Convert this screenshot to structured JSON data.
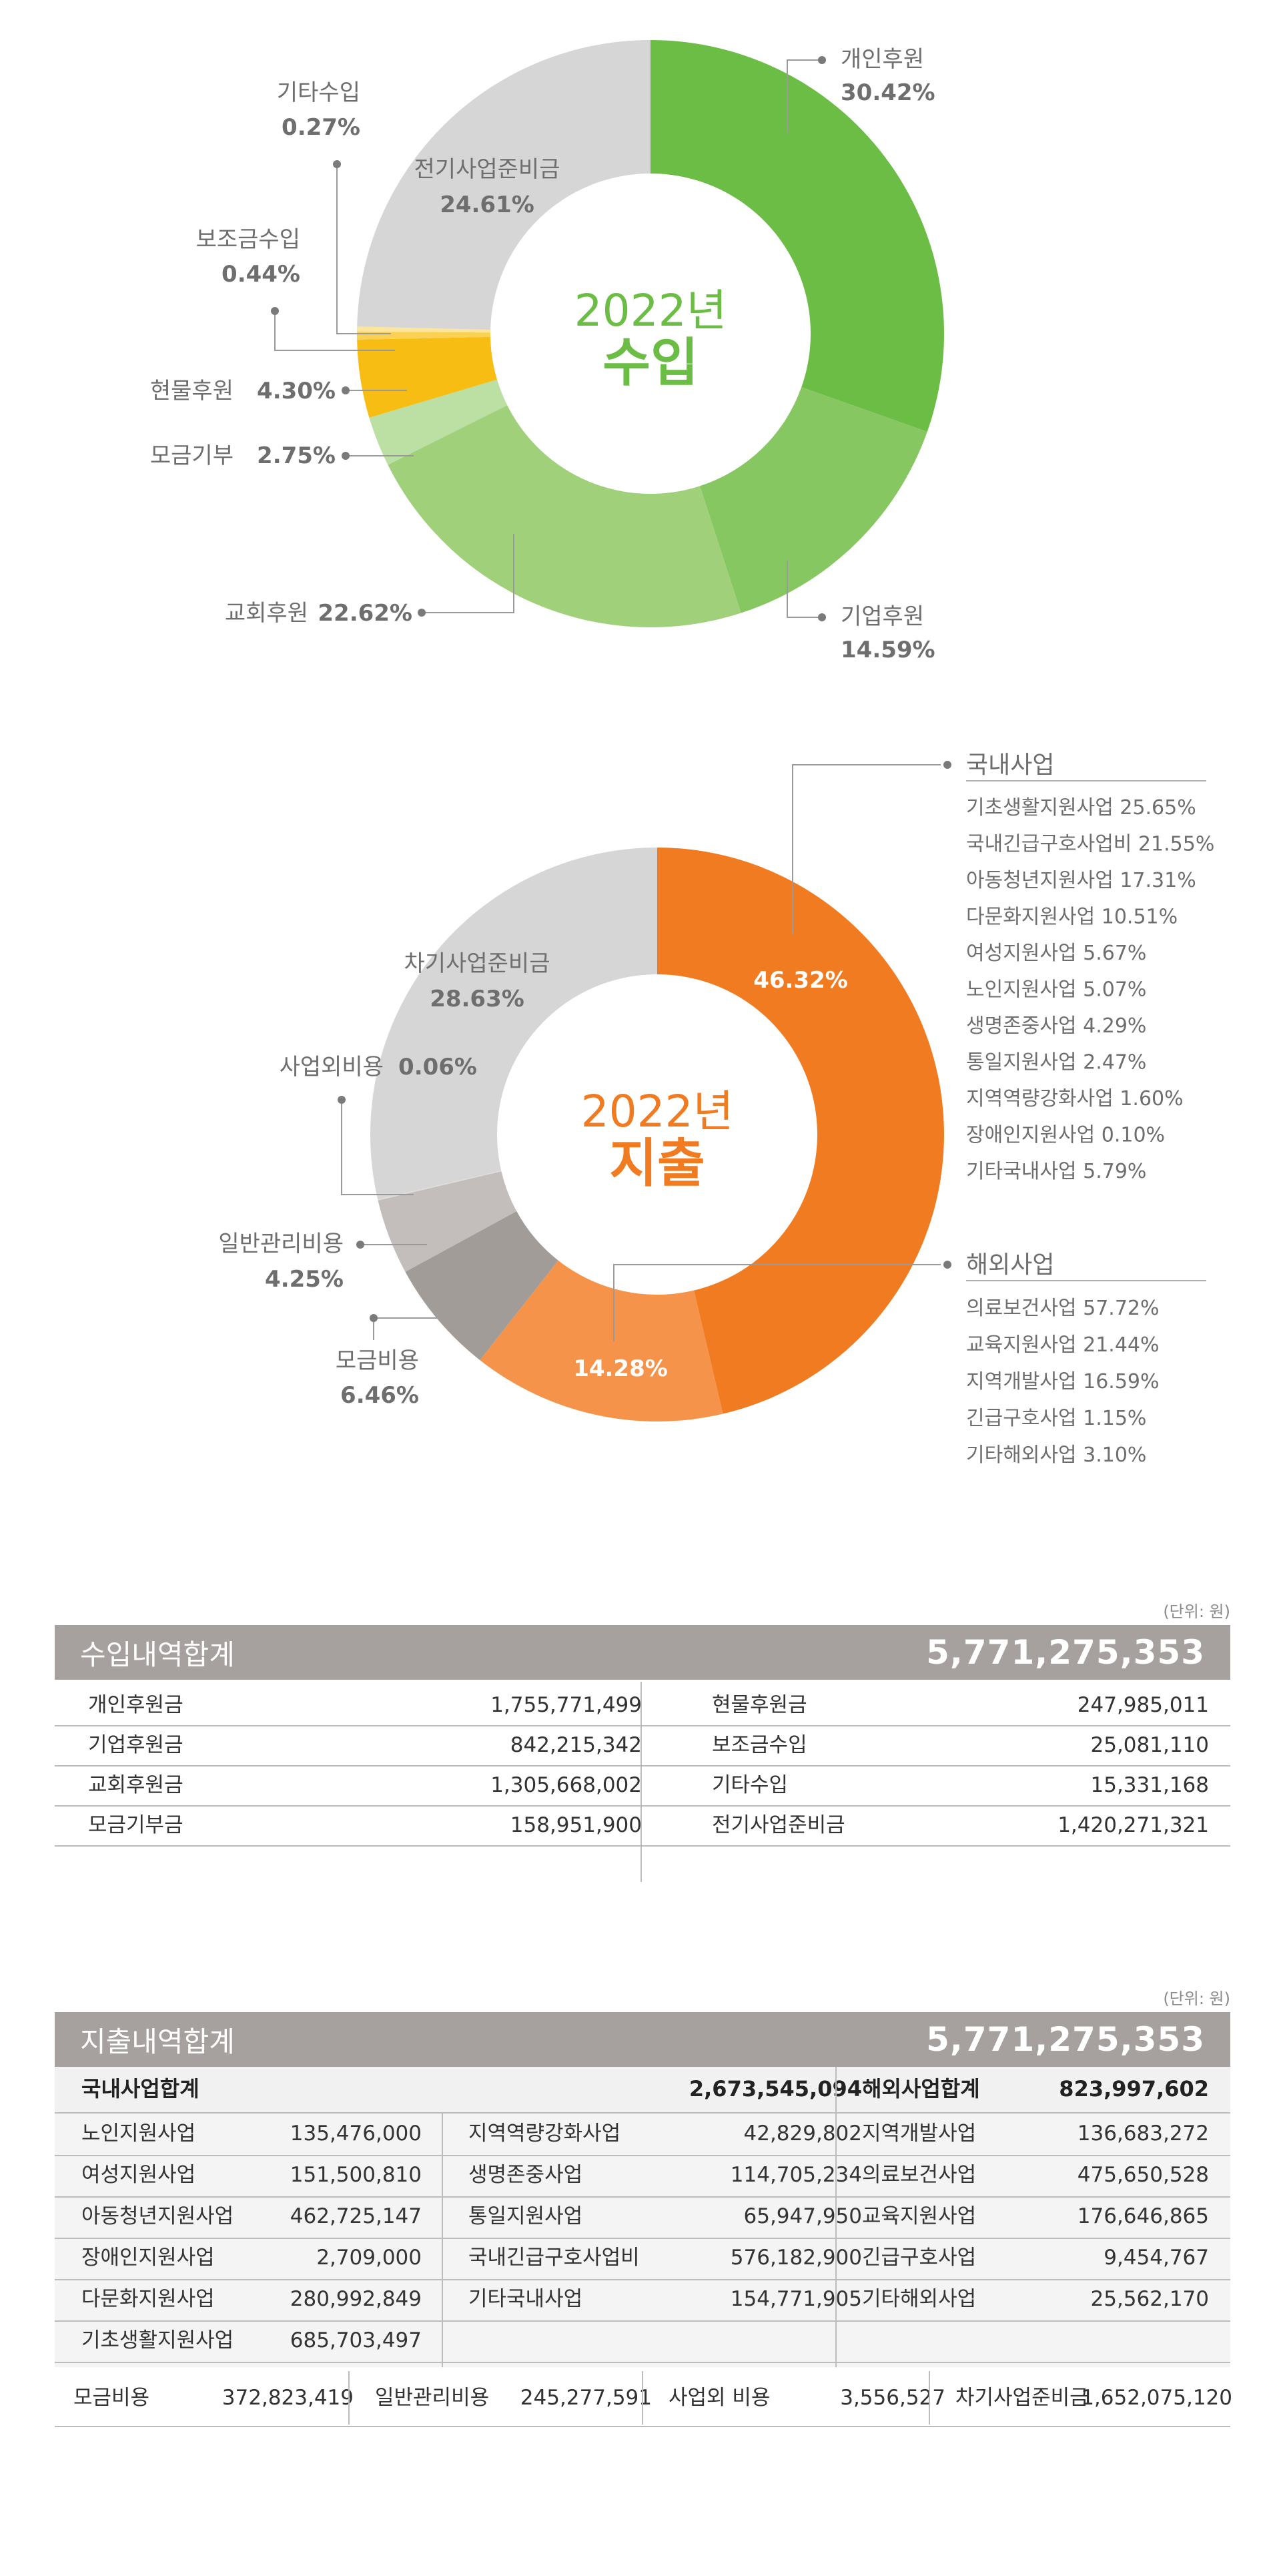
{
  "chart_data": [
    {
      "type": "pie",
      "center_title": {
        "year": "2022년",
        "label": "수입"
      },
      "slices": [
        {
          "name": "개인후원",
          "value": 30.42,
          "color": "#6cbd45"
        },
        {
          "name": "기업후원",
          "value": 14.59,
          "color": "#86c762"
        },
        {
          "name": "교회후원",
          "value": 22.62,
          "color": "#a0d07a"
        },
        {
          "name": "모금기부",
          "value": 2.75,
          "color": "#bcdfa4"
        },
        {
          "name": "현물후원",
          "value": 4.3,
          "color": "#f8bd12"
        },
        {
          "name": "보조금수입",
          "value": 0.44,
          "color": "#fbd153"
        },
        {
          "name": "기타수입",
          "value": 0.27,
          "color": "#fde59b"
        },
        {
          "name": "전기사업준비금",
          "value": 24.61,
          "color": "#d6d6d6"
        }
      ],
      "labels": [
        {
          "name": "개인후원",
          "value": "30.42%"
        },
        {
          "name": "기업후원",
          "value": "14.59%"
        },
        {
          "name": "교회후원",
          "value": "22.62%"
        },
        {
          "name": "모금기부",
          "value": "2.75%"
        },
        {
          "name": "현물후원",
          "value": "4.30%"
        },
        {
          "name": "보조금수입",
          "value": "0.44%"
        },
        {
          "name": "기타수입",
          "value": "0.27%"
        },
        {
          "name": "전기사업준비금",
          "value": "24.61%"
        }
      ]
    },
    {
      "type": "pie",
      "center_title": {
        "year": "2022년",
        "label": "지출"
      },
      "slices": [
        {
          "name": "국내사업",
          "value": 46.32,
          "color": "#f07b20"
        },
        {
          "name": "해외사업",
          "value": 14.28,
          "color": "#f5934a"
        },
        {
          "name": "모금비용",
          "value": 6.46,
          "color": "#a29c98"
        },
        {
          "name": "일반관리비용",
          "value": 4.25,
          "color": "#c3bebb"
        },
        {
          "name": "사업외비용",
          "value": 0.06,
          "color": "#e0dcda"
        },
        {
          "name": "차기사업준비금",
          "value": 28.63,
          "color": "#d6d6d6"
        }
      ],
      "labels": [
        {
          "name": "국내사업",
          "value": "46.32%"
        },
        {
          "name": "해외사업",
          "value": "14.28%"
        },
        {
          "name": "모금비용",
          "value": "6.46%"
        },
        {
          "name": "일반관리비용",
          "value": "4.25%"
        },
        {
          "name": "사업외비용",
          "value": "0.06%"
        },
        {
          "name": "차기사업준비금",
          "value": "28.63%"
        }
      ],
      "breakdowns": {
        "국내사업": [
          "기초생활지원사업 25.65%",
          "국내긴급구호사업비 21.55%",
          "아동청년지원사업 17.31%",
          "다문화지원사업 10.51%",
          "여성지원사업 5.67%",
          "노인지원사업 5.07%",
          "생명존중사업 4.29%",
          "통일지원사업 2.47%",
          "지역역량강화사업 1.60%",
          "장애인지원사업 0.10%",
          "기타국내사업 5.79%"
        ],
        "해외사업": [
          "의료보건사업 57.72%",
          "교육지원사업 21.44%",
          "지역개발사업 16.59%",
          "긴급구호사업 1.15%",
          "기타해외사업 3.10%"
        ]
      }
    }
  ],
  "income_table": {
    "unit": "(단위: 원)",
    "title": "수입내역합계",
    "total": "5,771,275,353",
    "rows": [
      [
        "개인후원금",
        "1,755,771,499",
        "현물후원금",
        "247,985,011"
      ],
      [
        "기업후원금",
        "842,215,342",
        "보조금수입",
        "25,081,110"
      ],
      [
        "교회후원금",
        "1,305,668,002",
        "기타수입",
        "15,331,168"
      ],
      [
        "모금기부금",
        "158,951,900",
        "전기사업준비금",
        "1,420,271,321"
      ]
    ]
  },
  "expense_table": {
    "unit": "(단위: 원)",
    "title": "지출내역합계",
    "total": "5,771,275,353",
    "domestic_title": "국내사업합계",
    "domestic_total": "2,673,545,094",
    "overseas_title": "해외사업합계",
    "overseas_total": "823,997,602",
    "rows": [
      [
        "노인지원사업",
        "135,476,000",
        "지역역량강화사업",
        "42,829,802",
        "지역개발사업",
        "136,683,272"
      ],
      [
        "여성지원사업",
        "151,500,810",
        "생명존중사업",
        "114,705,234",
        "의료보건사업",
        "475,650,528"
      ],
      [
        "아동청년지원사업",
        "462,725,147",
        "통일지원사업",
        "65,947,950",
        "교육지원사업",
        "176,646,865"
      ],
      [
        "장애인지원사업",
        "2,709,000",
        "국내긴급구호사업비",
        "576,182,900",
        "긴급구호사업",
        "9,454,767"
      ],
      [
        "다문화지원사업",
        "280,992,849",
        "기타국내사업",
        "154,771,905",
        "기타해외사업",
        "25,562,170"
      ],
      [
        "기초생활지원사업",
        "685,703,497",
        "",
        "",
        "",
        ""
      ]
    ],
    "bottom": [
      [
        "모금비용",
        "372,823,419"
      ],
      [
        "일반관리비용",
        "245,277,591"
      ],
      [
        "사업외 비용",
        "3,556,527"
      ],
      [
        "차기사업준비금",
        "1,652,075,120"
      ]
    ]
  }
}
